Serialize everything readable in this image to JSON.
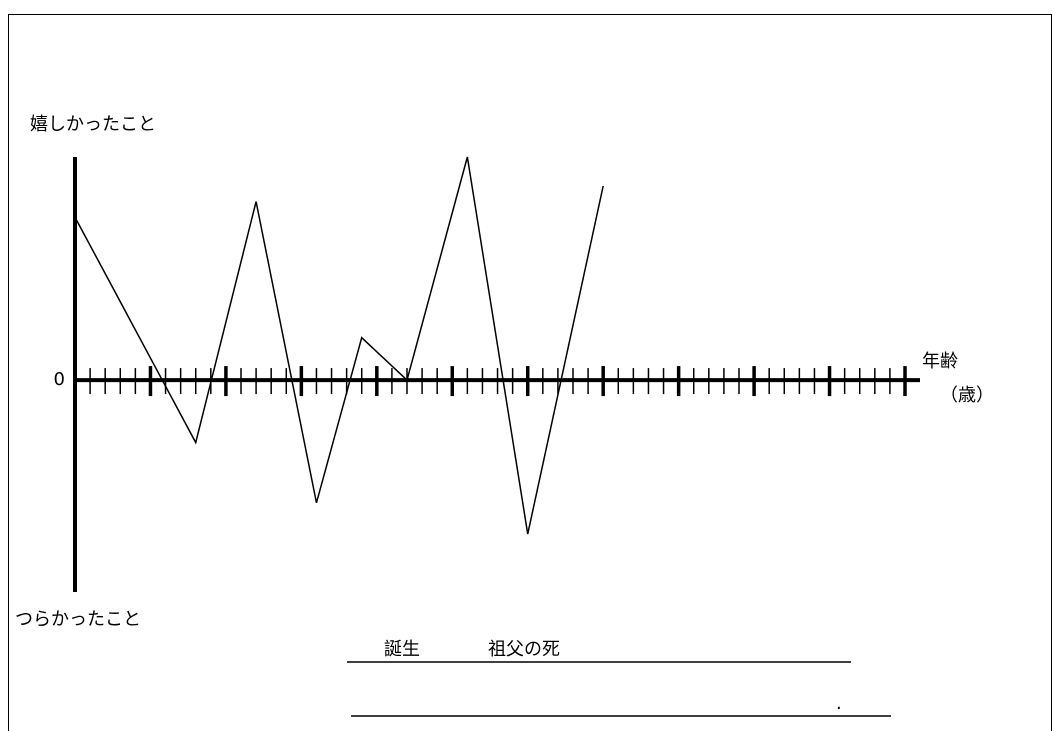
{
  "chart_data": {
    "type": "line",
    "y_top_label": "嬉しかったこと",
    "y_bottom_label": "つらかったこと",
    "x_label": "年齢",
    "x_unit": "（歳）",
    "x": [
      0,
      8,
      12,
      16,
      19,
      22,
      26,
      30,
      35
    ],
    "values": [
      73,
      -28,
      80,
      -55,
      19,
      0,
      100,
      -69,
      87
    ],
    "color": "#000000",
    "xlim": [
      0,
      55
    ],
    "ylim": [
      -95,
      100
    ],
    "yticks": [
      0
    ],
    "xticks": [
      1,
      2,
      3,
      4,
      6,
      7,
      8,
      9,
      11,
      12,
      13,
      14,
      16,
      17,
      18,
      19,
      21,
      22,
      23,
      24,
      26,
      27,
      28,
      29,
      31,
      32,
      33,
      34,
      36,
      37,
      38,
      39,
      41,
      42,
      43,
      44,
      46,
      47,
      48,
      49,
      51,
      52,
      53,
      54
    ],
    "major_xticks": [
      5,
      10,
      15,
      20,
      25,
      30,
      35,
      40,
      45,
      50,
      55
    ],
    "annotations": [
      "誕生",
      "祖父の死",
      "."
    ]
  }
}
